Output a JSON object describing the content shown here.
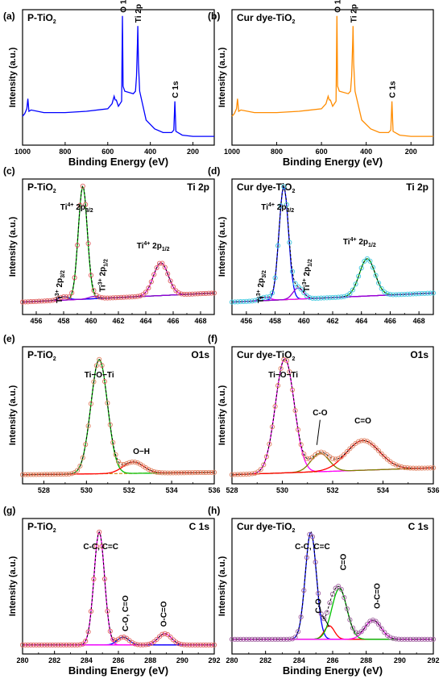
{
  "chart_data": [
    {
      "type": "line",
      "panel": "(a)",
      "title": "P-TiO2",
      "xlabel": "Binding Energy (eV)",
      "ylabel": "Intensity (a.u.)",
      "xlim": [
        1000,
        100
      ],
      "reversed": true,
      "xticks": [
        1000,
        800,
        600,
        400,
        200
      ],
      "color": "#0000ff",
      "annotations": [
        {
          "text": "O 1s",
          "x": 530
        },
        {
          "text": "Ti 2p",
          "x": 459
        },
        {
          "text": "C 1s",
          "x": 285
        }
      ],
      "series": [
        {
          "x": [
            1000,
            990,
            980,
            975,
            970,
            960,
            900,
            800,
            700,
            600,
            580,
            570,
            565,
            560,
            550,
            535,
            531,
            530,
            528,
            520,
            480,
            470,
            465,
            460,
            459,
            456,
            450,
            420,
            380,
            340,
            300,
            290,
            285,
            280,
            250,
            200,
            150,
            100
          ],
          "y": [
            0.2,
            0.22,
            0.26,
            0.34,
            0.24,
            0.25,
            0.23,
            0.23,
            0.24,
            0.26,
            0.3,
            0.36,
            0.33,
            0.33,
            0.28,
            0.32,
            1.0,
            0.82,
            0.44,
            0.4,
            0.38,
            0.4,
            0.52,
            0.82,
            0.92,
            0.62,
            0.4,
            0.17,
            0.1,
            0.07,
            0.07,
            0.09,
            0.32,
            0.08,
            0.05,
            0.04,
            0.04,
            0.04
          ]
        }
      ]
    },
    {
      "type": "line",
      "panel": "(b)",
      "title": "Cur dye-TiO2",
      "xlabel": "Binding Energy (eV)",
      "ylabel": "Intensity (a.u.)",
      "xlim": [
        1000,
        100
      ],
      "reversed": true,
      "xticks": [
        1000,
        800,
        600,
        400,
        200
      ],
      "color": "#ff8c00",
      "annotations": [
        {
          "text": "O 1s",
          "x": 530
        },
        {
          "text": "Ti 2p",
          "x": 459
        },
        {
          "text": "C 1s",
          "x": 285
        }
      ],
      "series": [
        {
          "x": [
            1000,
            990,
            980,
            975,
            970,
            960,
            900,
            800,
            700,
            600,
            580,
            570,
            565,
            560,
            550,
            535,
            531,
            530,
            528,
            520,
            480,
            470,
            465,
            460,
            459,
            456,
            450,
            420,
            380,
            340,
            300,
            290,
            285,
            280,
            250,
            200,
            150,
            100
          ],
          "y": [
            0.2,
            0.22,
            0.26,
            0.34,
            0.24,
            0.25,
            0.23,
            0.23,
            0.24,
            0.26,
            0.3,
            0.36,
            0.33,
            0.33,
            0.28,
            0.32,
            1.0,
            0.82,
            0.44,
            0.4,
            0.38,
            0.4,
            0.52,
            0.82,
            0.92,
            0.62,
            0.4,
            0.17,
            0.1,
            0.07,
            0.07,
            0.09,
            0.32,
            0.08,
            0.05,
            0.04,
            0.04,
            0.04
          ]
        }
      ]
    },
    {
      "type": "line",
      "panel": "(c)",
      "title": "P-TiO2",
      "subtitle": "Ti 2p",
      "xlabel": "",
      "ylabel": "Intensity (a.u.)",
      "xlim": [
        455,
        469
      ],
      "xticks": [
        456,
        458,
        460,
        462,
        464,
        466,
        468
      ],
      "marker_color": "#e06060",
      "baseline": [
        0.03,
        0.11
      ],
      "annotations": [
        {
          "text": "Ti4+ 2p3/2"
        },
        {
          "text": "Ti3+ 2p3/2"
        },
        {
          "text": "Ti3+ 2p1/2"
        },
        {
          "text": "Ti4+ 2p1/2"
        }
      ],
      "peaks": [
        {
          "center": 459.4,
          "height": 1.0,
          "width": 0.55,
          "color": "#00c000"
        },
        {
          "center": 465.1,
          "height": 0.29,
          "width": 0.9,
          "color": "#ff00ff"
        },
        {
          "center": 458.0,
          "height": 0.03,
          "width": 0.6,
          "color": "#0000ff"
        },
        {
          "center": 460.2,
          "height": 0.02,
          "width": 0.6,
          "color": "#9400d3"
        }
      ],
      "series": [
        {
          "x": [
            455,
            456,
            457,
            458,
            458.5,
            459,
            459.4,
            460,
            460.5,
            461,
            462,
            463,
            464,
            464.5,
            465,
            465.5,
            466,
            467,
            468,
            469
          ],
          "y": [
            0.03,
            0.03,
            0.05,
            0.28,
            0.62,
            0.95,
            1.0,
            0.62,
            0.28,
            0.14,
            0.1,
            0.12,
            0.2,
            0.27,
            0.34,
            0.33,
            0.24,
            0.14,
            0.12,
            0.11
          ]
        }
      ]
    },
    {
      "type": "line",
      "panel": "(d)",
      "title": "Cur dye-TiO2",
      "subtitle": "Ti 2p",
      "xlabel": "",
      "ylabel": "Intensity (a.u.)",
      "xlim": [
        455,
        469
      ],
      "xticks": [
        456,
        458,
        460,
        462,
        464,
        466,
        468
      ],
      "marker_color": "#40c8e0",
      "baseline": [
        0.03,
        0.11
      ],
      "annotations": [
        {
          "text": "Ti4+ 2p3/2"
        },
        {
          "text": "Ti3+ 2p3/2"
        },
        {
          "text": "Ti3+ 2p1/2"
        },
        {
          "text": "Ti4+ 2p1/2"
        }
      ],
      "peaks": [
        {
          "center": 458.6,
          "height": 1.0,
          "width": 0.55,
          "color": "#0000ff"
        },
        {
          "center": 464.4,
          "height": 0.33,
          "width": 0.9,
          "color": "#00c000"
        },
        {
          "center": 457.3,
          "height": 0.03,
          "width": 0.6,
          "color": "#ff00ff"
        },
        {
          "center": 459.6,
          "height": 0.1,
          "width": 0.6,
          "color": "#9400d3"
        }
      ],
      "series": [
        {
          "x": [
            455,
            456,
            457,
            458,
            458.3,
            458.6,
            459,
            459.5,
            460,
            461,
            462,
            463,
            463.5,
            464,
            464.4,
            465,
            466,
            467,
            468,
            469
          ],
          "y": [
            0.03,
            0.04,
            0.08,
            0.68,
            0.92,
            1.0,
            0.8,
            0.42,
            0.22,
            0.12,
            0.1,
            0.16,
            0.24,
            0.34,
            0.38,
            0.3,
            0.16,
            0.12,
            0.11,
            0.11
          ]
        }
      ]
    },
    {
      "type": "line",
      "panel": "(e)",
      "title": "P-TiO2",
      "subtitle": "O1s",
      "xlabel": "",
      "ylabel": "Intensity (a.u.)",
      "xlim": [
        527,
        536
      ],
      "xticks": [
        528,
        530,
        532,
        534,
        536
      ],
      "marker_color": "#e08060",
      "baseline": [
        0.0,
        0.02
      ],
      "annotations": [
        {
          "text": "Ti−O−Ti"
        },
        {
          "text": "O−H"
        }
      ],
      "peaks": [
        {
          "center": 530.6,
          "height": 1.0,
          "width": 0.65,
          "color": "#00c000"
        },
        {
          "center": 532.2,
          "height": 0.1,
          "width": 0.8,
          "color": "#ff0000"
        }
      ],
      "series": [
        {
          "x": [
            527,
            528,
            529,
            529.5,
            530,
            530.4,
            530.6,
            531,
            531.5,
            532,
            532.5,
            533,
            534,
            535,
            536
          ],
          "y": [
            0.01,
            0.02,
            0.1,
            0.34,
            0.8,
            0.98,
            1.0,
            0.84,
            0.34,
            0.14,
            0.09,
            0.06,
            0.03,
            0.02,
            0.02
          ]
        }
      ]
    },
    {
      "type": "line",
      "panel": "(f)",
      "title": "Cur dye-TiO2",
      "subtitle": "O1s",
      "xlabel": "",
      "ylabel": "Intensity (a.u.)",
      "xlim": [
        528,
        536
      ],
      "xticks": [
        528,
        530,
        532,
        534,
        536
      ],
      "marker_color": "#e08060",
      "baseline": [
        0.0,
        0.06
      ],
      "annotations": [
        {
          "text": "Ti−O−Ti"
        },
        {
          "text": "C-O"
        },
        {
          "text": "C=O"
        }
      ],
      "peaks": [
        {
          "center": 530.1,
          "height": 1.0,
          "width": 0.62,
          "color": "#ff00ff"
        },
        {
          "center": 531.5,
          "height": 0.16,
          "width": 0.6,
          "color": "#808000"
        },
        {
          "center": 533.2,
          "height": 0.26,
          "width": 1.1,
          "color": "#ff0000"
        }
      ],
      "series": [
        {
          "x": [
            528,
            529,
            529.5,
            530,
            530.3,
            530.6,
            531,
            531.5,
            532,
            532.5,
            533,
            533.5,
            534,
            534.5,
            535,
            536
          ],
          "y": [
            0.02,
            0.16,
            0.56,
            0.96,
            1.0,
            0.88,
            0.48,
            0.32,
            0.3,
            0.32,
            0.34,
            0.32,
            0.24,
            0.14,
            0.1,
            0.08
          ]
        }
      ]
    },
    {
      "type": "line",
      "panel": "(g)",
      "title": "P-TiO2",
      "subtitle": "C 1s",
      "xlabel": "Binding Energy (eV)",
      "ylabel": "Intensity (a.u.)",
      "xlim": [
        280,
        292
      ],
      "xticks": [
        280,
        282,
        284,
        286,
        288,
        290,
        292
      ],
      "marker_color": "#e06060",
      "baseline": [
        0.0,
        0.0
      ],
      "annotations": [
        {
          "text": "C-C, C=C"
        },
        {
          "text": "C-O, C=O"
        },
        {
          "text": "O-C=O"
        }
      ],
      "peaks": [
        {
          "center": 284.8,
          "height": 1.0,
          "width": 0.55,
          "color": "#ff00ff"
        },
        {
          "center": 286.3,
          "height": 0.07,
          "width": 0.6,
          "color": "#0000ff"
        },
        {
          "center": 288.9,
          "height": 0.1,
          "width": 0.7,
          "color": "#ff00ff"
        }
      ],
      "series": [
        {
          "x": [
            280,
            281,
            282,
            283,
            283.5,
            284,
            284.5,
            284.8,
            285,
            285.5,
            286,
            286.5,
            287,
            288,
            288.9,
            289.5,
            290,
            291,
            292
          ],
          "y": [
            0.02,
            0.02,
            0.02,
            0.04,
            0.12,
            0.46,
            0.92,
            1.0,
            0.94,
            0.54,
            0.16,
            0.08,
            0.06,
            0.08,
            0.12,
            0.09,
            0.05,
            0.03,
            0.02
          ]
        }
      ]
    },
    {
      "type": "line",
      "panel": "(h)",
      "title": "Cur dye-TiO2",
      "subtitle": "C 1s",
      "xlabel": "Binding Energy (eV)",
      "ylabel": "Intensity (a.u.)",
      "xlim": [
        280,
        292
      ],
      "xticks": [
        280,
        282,
        284,
        286,
        288,
        290,
        292
      ],
      "marker_color": "#a060a0",
      "baseline": [
        0.05,
        0.05
      ],
      "annotations": [
        {
          "text": "C-C, C=C"
        },
        {
          "text": "C-O"
        },
        {
          "text": "C=O"
        },
        {
          "text": "O-C=O"
        }
      ],
      "peaks": [
        {
          "center": 284.7,
          "height": 0.95,
          "width": 0.55,
          "color": "#0000ff"
        },
        {
          "center": 285.8,
          "height": 0.12,
          "width": 0.5,
          "color": "#ff0000"
        },
        {
          "center": 286.4,
          "height": 0.45,
          "width": 0.75,
          "color": "#00c000"
        },
        {
          "center": 288.4,
          "height": 0.17,
          "width": 0.8,
          "color": "#ff00ff"
        }
      ],
      "series": [
        {
          "x": [
            280,
            281,
            282,
            283,
            283.5,
            284,
            284.5,
            284.7,
            285,
            285.5,
            286,
            286.5,
            287,
            287.5,
            288,
            288.5,
            289,
            290,
            291,
            292
          ],
          "y": [
            0.05,
            0.05,
            0.06,
            0.1,
            0.2,
            0.52,
            0.92,
            1.0,
            0.94,
            0.74,
            0.6,
            0.52,
            0.4,
            0.28,
            0.24,
            0.24,
            0.18,
            0.09,
            0.06,
            0.05
          ]
        }
      ]
    }
  ]
}
